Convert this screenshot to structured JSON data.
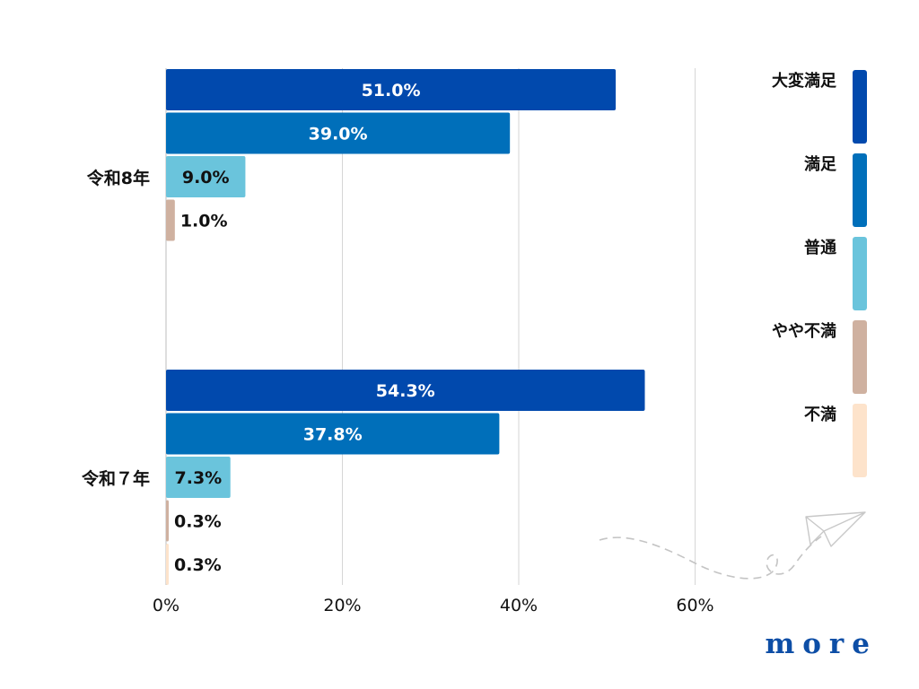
{
  "chart_data": {
    "type": "bar",
    "orientation": "horizontal",
    "categories": [
      "令和8年",
      "令和７年"
    ],
    "series": [
      {
        "name": "大変満足",
        "color": "#0149ad",
        "values": [
          51.0,
          54.3
        ],
        "labels": [
          "51.0%",
          "54.3%"
        ]
      },
      {
        "name": "満足",
        "color": "#006fba",
        "values": [
          39.0,
          37.8
        ],
        "labels": [
          "39.0%",
          "37.8%"
        ]
      },
      {
        "name": "普通",
        "color": "#6ac4dc",
        "values": [
          9.0,
          7.3
        ],
        "labels": [
          "9.0%",
          "7.3%"
        ]
      },
      {
        "name": "やや不満",
        "color": "#cfb1a0",
        "values": [
          1.0,
          0.3
        ],
        "labels": [
          "1.0%",
          "0.3%"
        ]
      },
      {
        "name": "不満",
        "color": "#fde3cb",
        "values": [
          null,
          0.3
        ],
        "labels": [
          null,
          "0.3%"
        ]
      }
    ],
    "xlim": [
      0,
      60
    ],
    "xticks": [
      "0%",
      "20%",
      "40%",
      "60%"
    ],
    "grid": true,
    "legend_position": "right",
    "title": "",
    "xlabel": "",
    "ylabel": ""
  },
  "branding": {
    "logo_text": "more",
    "logo_color": "#0d4ea6"
  }
}
